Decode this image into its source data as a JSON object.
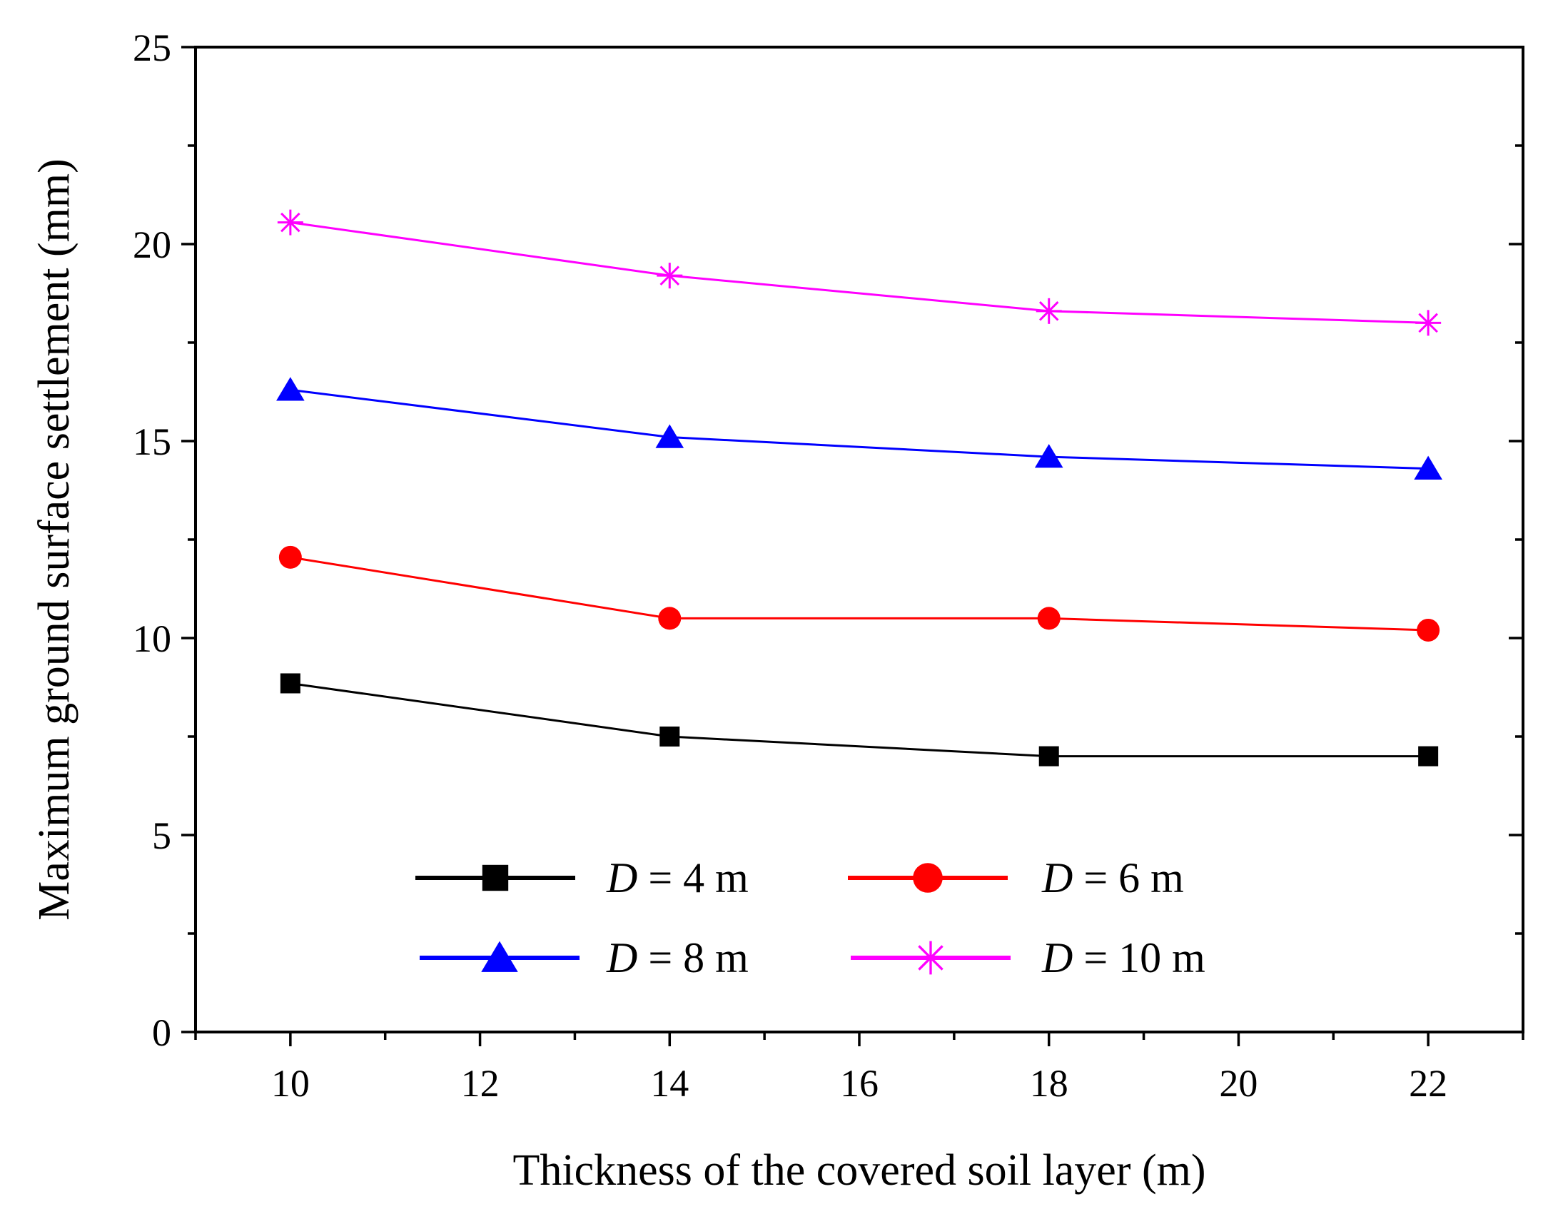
{
  "chart_data": {
    "type": "line",
    "title": "",
    "xlabel": "Thickness of the covered soil layer (m)",
    "ylabel": "Maximum ground surface settlement (mm)",
    "xlim": [
      9,
      23
    ],
    "ylim": [
      0,
      25
    ],
    "x_ticks": [
      10,
      12,
      14,
      16,
      18,
      20,
      22
    ],
    "y_ticks": [
      0,
      5,
      10,
      15,
      20,
      25
    ],
    "grid": false,
    "legend_position": "bottom-center",
    "series": [
      {
        "name": "D = 4 m",
        "var": "D",
        "rest": " = 4 m",
        "color": "#000000",
        "marker": "square",
        "x": [
          10,
          14,
          18,
          22
        ],
        "values": [
          8.85,
          7.5,
          7.0,
          7.0
        ]
      },
      {
        "name": "D = 6 m",
        "var": "D",
        "rest": " = 6 m",
        "color": "#ff0000",
        "marker": "circle",
        "x": [
          10,
          14,
          18,
          22
        ],
        "values": [
          12.05,
          10.5,
          10.5,
          10.2
        ]
      },
      {
        "name": "D = 8 m",
        "var": "D",
        "rest": " = 8 m",
        "color": "#0000ff",
        "marker": "triangle",
        "x": [
          10,
          14,
          18,
          22
        ],
        "values": [
          16.3,
          15.1,
          14.6,
          14.3
        ]
      },
      {
        "name": "D = 10 m",
        "var": "D",
        "rest": " = 10 m",
        "color": "#ff00ff",
        "marker": "star",
        "x": [
          10,
          14,
          18,
          22
        ],
        "values": [
          20.55,
          19.2,
          18.3,
          18.0
        ]
      }
    ]
  }
}
